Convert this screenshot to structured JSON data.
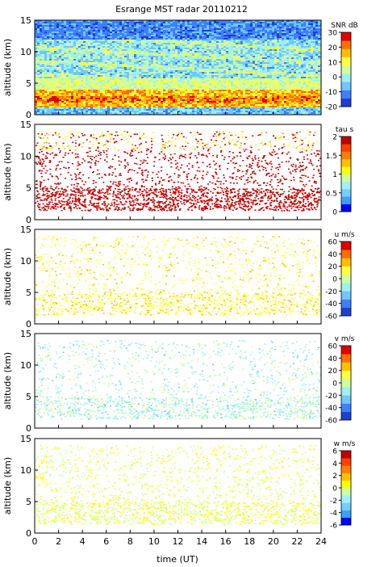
{
  "chart_data": {
    "type": "heatmap",
    "title": "Esrange MST radar 20110212",
    "xlabel": "time (UT)",
    "xlim": [
      0,
      24
    ],
    "xticks": [
      "0",
      "2",
      "4",
      "6",
      "8",
      "10",
      "12",
      "14",
      "16",
      "18",
      "20",
      "22",
      "24"
    ],
    "shared_x": true,
    "grid": false,
    "panels": [
      {
        "ylabel": "altitude (km)",
        "ylim": [
          0,
          15
        ],
        "yticks": [
          "0",
          "5",
          "10",
          "15"
        ],
        "colorbar": {
          "label": "SNR dB",
          "range": [
            -20,
            30
          ],
          "ticks": [
            "30",
            "20",
            "10",
            "0",
            "-10",
            "-20"
          ],
          "palette": [
            "#1f3fd0",
            "#3f7fff",
            "#6fc7ff",
            "#9fefef",
            "#cfff9f",
            "#ffff3f",
            "#ffbf00",
            "#ff6f00",
            "#df0000"
          ],
          "levels": 9
        },
        "field": "continuous background field; strong echo layer around 2–4 km with sporadic peaks; weaker layers up to ~12 km; noise above"
      },
      {
        "ylabel": "altitude (km)",
        "ylim": [
          0,
          15
        ],
        "yticks": [
          "0",
          "5",
          "10",
          "15"
        ],
        "colorbar": {
          "label": "tau s",
          "range": [
            0,
            2
          ],
          "ticks": [
            "2",
            "1.5",
            "1",
            "0.5",
            "0"
          ],
          "palette": [
            "#0000ff",
            "#3f9fff",
            "#6fcfff",
            "#9fefff",
            "#cfff9f",
            "#ffff00",
            "#ffbf00",
            "#ff7f00",
            "#ff3f00",
            "#c00000"
          ],
          "levels": 10
        },
        "field": "sparse dots mostly dark red; dense band 1.5–5 km; scattered layers 5–11 km"
      },
      {
        "ylabel": "altitude (km)",
        "ylim": [
          0,
          15
        ],
        "yticks": [
          "0",
          "5",
          "10",
          "15"
        ],
        "colorbar": {
          "label": "u m/s",
          "range": [
            -60,
            60
          ],
          "ticks": [
            "60",
            "40",
            "20",
            "0",
            "-20",
            "-40",
            "-60"
          ],
          "palette": [
            "#1f3fd0",
            "#3f7fff",
            "#6fc7ff",
            "#9fefef",
            "#cfff9f",
            "#ffff3f",
            "#ffbf00",
            "#ff6f00",
            "#df0000"
          ],
          "levels": 9
        },
        "field": "sparse dots, yellow-green, values around 10–20 m/s"
      },
      {
        "ylabel": "altitude (km)",
        "ylim": [
          0,
          15
        ],
        "yticks": [
          "0",
          "5",
          "10",
          "15"
        ],
        "colorbar": {
          "label": "v m/s",
          "range": [
            -60,
            60
          ],
          "ticks": [
            "60",
            "40",
            "20",
            "0",
            "-20",
            "-40",
            "-60"
          ],
          "palette": [
            "#1f3fd0",
            "#3f7fff",
            "#6fc7ff",
            "#9fefef",
            "#cfff9f",
            "#ffff3f",
            "#ffbf00",
            "#ff6f00",
            "#df0000"
          ],
          "levels": 9
        },
        "field": "sparse dots, light cyan to pale green, values around -20 to 0 m/s"
      },
      {
        "ylabel": "altitude (km)",
        "ylim": [
          0,
          15
        ],
        "yticks": [
          "0",
          "5",
          "10",
          "15"
        ],
        "colorbar": {
          "label": "w m/s",
          "range": [
            -6,
            6
          ],
          "ticks": [
            "6",
            "4",
            "2",
            "0",
            "-2",
            "-4",
            "-6"
          ],
          "palette": [
            "#0000ff",
            "#3f9fff",
            "#6fcfff",
            "#9fefff",
            "#cfff9f",
            "#ffff00",
            "#ffbf00",
            "#ff7f00",
            "#ff3f00",
            "#c00000"
          ],
          "levels": 10
        },
        "field": "sparse dots, light yellow-green near 0 m/s"
      }
    ]
  }
}
